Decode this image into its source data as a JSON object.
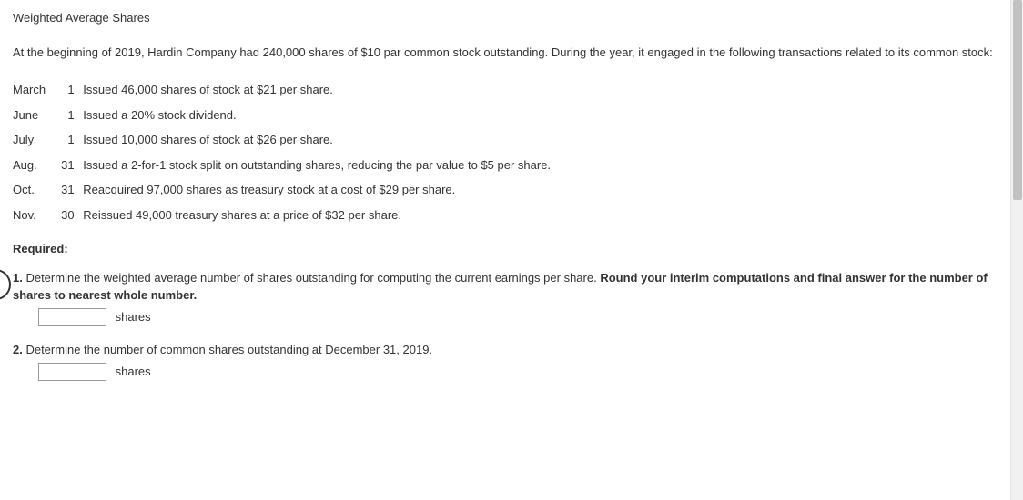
{
  "title": "Weighted Average Shares",
  "intro": "At the beginning of 2019, Hardin Company had 240,000 shares of $10 par common stock outstanding. During the year, it engaged in the following transactions related to its common stock:",
  "transactions": [
    {
      "month": "March",
      "day": "1",
      "desc": "Issued 46,000 shares of stock at $21 per share."
    },
    {
      "month": "June",
      "day": "1",
      "desc": "Issued a 20% stock dividend."
    },
    {
      "month": "July",
      "day": "1",
      "desc": "Issued 10,000 shares of stock at $26 per share."
    },
    {
      "month": "Aug.",
      "day": "31",
      "desc": "Issued a 2-for-1 stock split on outstanding shares, reducing the par value to $5 per share."
    },
    {
      "month": "Oct.",
      "day": "31",
      "desc": "Reacquired 97,000 shares as treasury stock at a cost of $29 per share."
    },
    {
      "month": "Nov.",
      "day": "30",
      "desc": "Reissued 49,000 treasury shares at a price of $32 per share."
    }
  ],
  "required_label": "Required:",
  "q1": {
    "bold_prefix": "1.",
    "text": " Determine the weighted average number of shares outstanding for computing the current earnings per share. ",
    "bold_suffix": "Round your interim computations and final answer for the number of shares to nearest whole number.",
    "unit": "shares",
    "value": ""
  },
  "q2": {
    "bold_prefix": "2.",
    "text": " Determine the number of common shares outstanding at December 31, 2019.",
    "unit": "shares",
    "value": ""
  }
}
